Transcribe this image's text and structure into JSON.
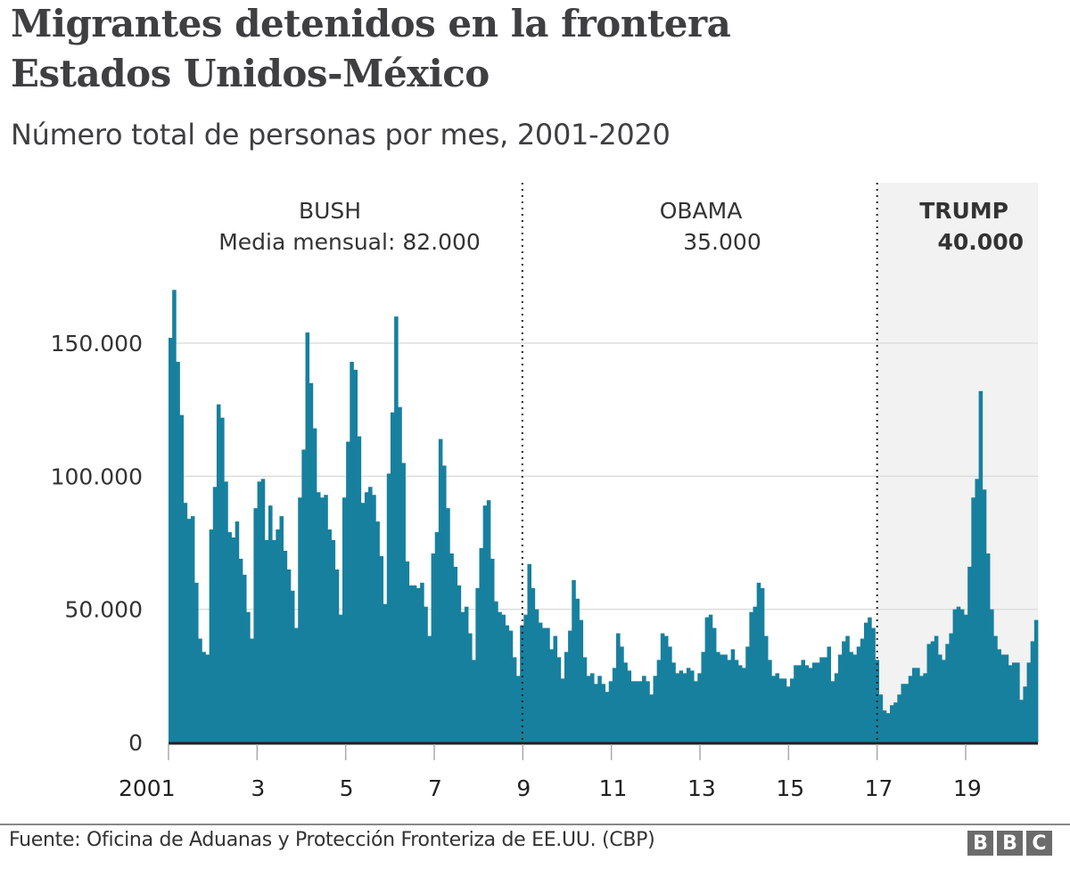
{
  "header": {
    "title_line1": "Migrantes detenidos en la frontera",
    "title_line2": "Estados Unidos-México",
    "subtitle": "Número total de personas por mes, 2001-2020"
  },
  "footer": {
    "source": "Fuente: Oficina de Aduanas y Protección Fronteriza de EE.UU. (CBP)",
    "logo_letters": [
      "B",
      "B",
      "C"
    ]
  },
  "colors": {
    "bar": "#17809e",
    "trump_shade": "#f2f2f2",
    "gridline": "#dddddd",
    "baseline": "#222222",
    "text": "#333333"
  },
  "chart_data": {
    "type": "bar",
    "title": "Migrantes detenidos en la frontera Estados Unidos-México",
    "subtitle": "Número total de personas por mes, 2001-2020",
    "xlabel": "",
    "ylabel": "",
    "ylim": [
      0,
      175000
    ],
    "yticks": [
      0,
      50000,
      100000,
      150000
    ],
    "ytick_labels": [
      "0",
      "50.000",
      "100.000",
      "150.000"
    ],
    "xlim_years": [
      2001,
      2020.6
    ],
    "xticks": [
      2001,
      2003,
      2005,
      2007,
      2009,
      2011,
      2013,
      2015,
      2017,
      2019
    ],
    "xtick_labels": [
      "2001",
      "3",
      "5",
      "7",
      "9",
      "11",
      "13",
      "15",
      "17",
      "19"
    ],
    "grid": true,
    "start_year": 2001,
    "periods": [
      {
        "name": "BUSH",
        "avg_label": "Media mensual: 82.000",
        "start_year": 2001,
        "end_year": 2009,
        "highlight": false
      },
      {
        "name": "OBAMA",
        "avg_label": "35.000",
        "start_year": 2009,
        "end_year": 2017,
        "highlight": false
      },
      {
        "name": "TRUMP",
        "avg_label": "40.000",
        "start_year": 2017,
        "end_year": 2020.6,
        "highlight": true
      }
    ],
    "monthly_values_thousands": [
      152,
      170,
      143,
      123,
      90,
      84,
      85,
      60,
      39,
      34,
      33,
      80,
      96,
      127,
      122,
      98,
      79,
      77,
      83,
      69,
      63,
      49,
      39,
      88,
      98,
      99,
      76,
      89,
      76,
      80,
      85,
      72,
      65,
      57,
      43,
      92,
      110,
      154,
      135,
      118,
      94,
      92,
      93,
      80,
      76,
      65,
      48,
      92,
      113,
      143,
      140,
      115,
      90,
      94,
      96,
      93,
      83,
      70,
      52,
      101,
      124,
      160,
      126,
      105,
      68,
      59,
      59,
      58,
      60,
      51,
      40,
      71,
      79,
      114,
      104,
      88,
      71,
      66,
      59,
      49,
      51,
      41,
      31,
      58,
      73,
      89,
      91,
      69,
      53,
      49,
      48,
      44,
      42,
      32,
      25,
      44,
      48,
      67,
      58,
      50,
      45,
      43,
      43,
      35,
      40,
      32,
      24,
      34,
      42,
      61,
      54,
      46,
      32,
      25,
      26,
      22,
      25,
      22,
      19,
      23,
      28,
      41,
      36,
      30,
      27,
      23,
      23,
      23,
      25,
      23,
      18,
      25,
      31,
      41,
      40,
      36,
      30,
      26,
      27,
      26,
      28,
      27,
      23,
      26,
      34,
      47,
      48,
      43,
      34,
      33,
      33,
      31,
      35,
      31,
      29,
      28,
      36,
      49,
      51,
      60,
      58,
      40,
      31,
      25,
      26,
      24,
      24,
      21,
      24,
      29,
      29,
      31,
      29,
      28,
      30,
      30,
      32,
      32,
      36,
      23,
      26,
      33,
      38,
      40,
      34,
      33,
      36,
      39,
      45,
      47,
      43,
      31,
      18,
      12,
      11,
      14,
      15,
      18,
      22,
      22,
      25,
      28,
      28,
      25,
      26,
      37,
      38,
      40,
      33,
      31,
      37,
      41,
      50,
      51,
      50,
      48,
      66,
      92,
      99,
      132,
      95,
      71,
      50,
      40,
      35,
      33,
      33,
      29,
      30,
      30,
      16,
      21,
      30,
      38,
      46
    ]
  }
}
